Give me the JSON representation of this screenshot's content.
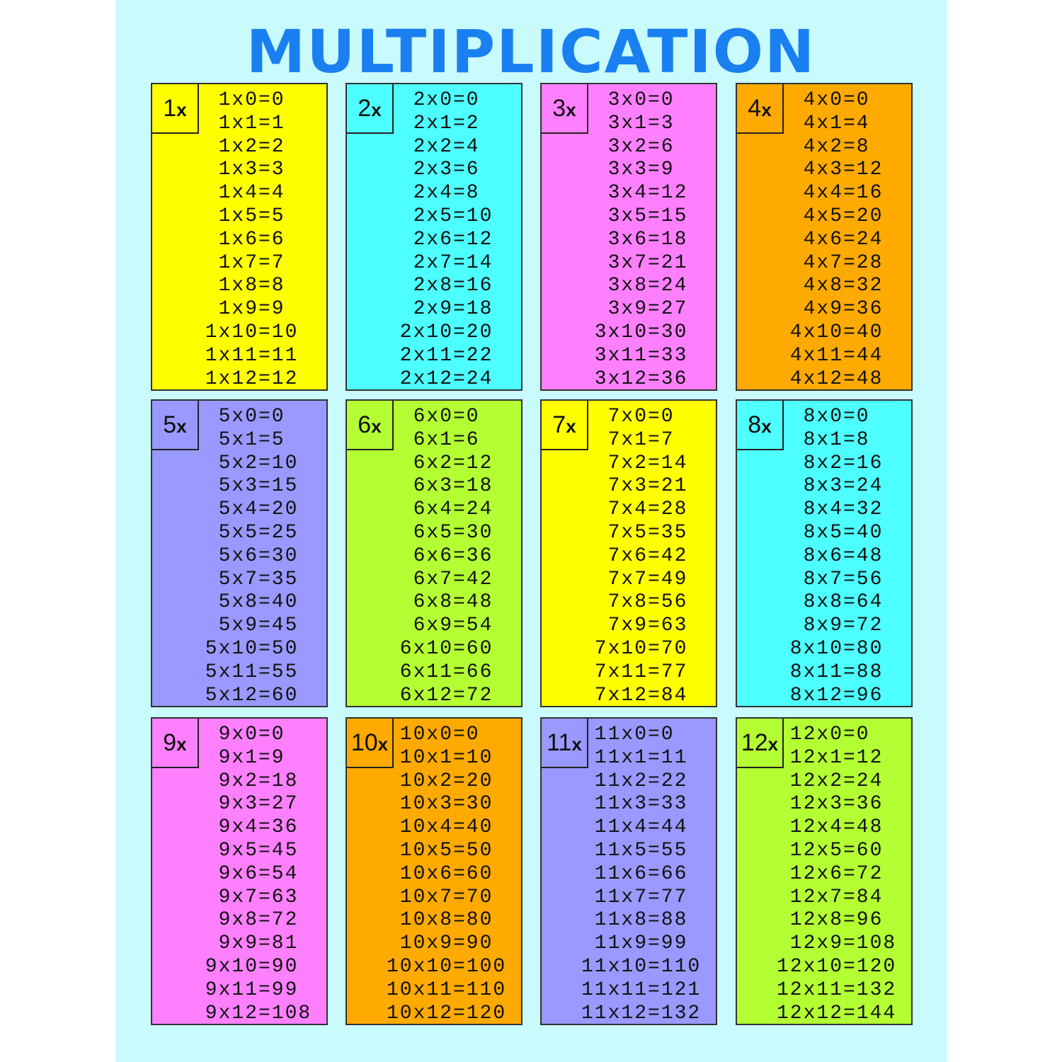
{
  "title": "MULTIPLICATION",
  "cards": [
    {
      "label": "1",
      "suffix": "x",
      "color": "#ffff00"
    },
    {
      "label": "2",
      "suffix": "x",
      "color": "#4dffff"
    },
    {
      "label": "3",
      "suffix": "x",
      "color": "#ff80ff"
    },
    {
      "label": "4",
      "suffix": "x",
      "color": "#ffaa00"
    },
    {
      "label": "5",
      "suffix": "x",
      "color": "#9999ff"
    },
    {
      "label": "6",
      "suffix": "x",
      "color": "#b3ff33"
    },
    {
      "label": "7",
      "suffix": "x",
      "color": "#ffff00"
    },
    {
      "label": "8",
      "suffix": "x",
      "color": "#4dffff"
    },
    {
      "label": "9",
      "suffix": "x",
      "color": "#ff80ff"
    },
    {
      "label": "10",
      "suffix": "x",
      "color": "#ffaa00"
    },
    {
      "label": "11",
      "suffix": "x",
      "color": "#9999ff"
    },
    {
      "label": "12",
      "suffix": "x",
      "color": "#b3ff33"
    }
  ],
  "equations": {
    "1": [
      "1x0=0",
      "1x1=1",
      "1x2=2",
      "1x3=3",
      "1x4=4",
      "1x5=5",
      "1x6=6",
      "1x7=7",
      "1x8=8",
      "1x9=9",
      "1x10=10",
      "1x11=11",
      "1x12=12"
    ],
    "2": [
      "2x0=0",
      "2x1=2",
      "2x2=4",
      "2x3=6",
      "2x4=8",
      "2x5=10",
      "2x6=12",
      "2x7=14",
      "2x8=16",
      "2x9=18",
      "2x10=20",
      "2x11=22",
      "2x12=24"
    ],
    "3": [
      "3x0=0",
      "3x1=3",
      "3x2=6",
      "3x3=9",
      "3x4=12",
      "3x5=15",
      "3x6=18",
      "3x7=21",
      "3x8=24",
      "3x9=27",
      "3x10=30",
      "3x11=33",
      "3x12=36"
    ],
    "4": [
      "4x0=0",
      "4x1=4",
      "4x2=8",
      "4x3=12",
      "4x4=16",
      "4x5=20",
      "4x6=24",
      "4x7=28",
      "4x8=32",
      "4x9=36",
      "4x10=40",
      "4x11=44",
      "4x12=48"
    ],
    "5": [
      "5x0=0",
      "5x1=5",
      "5x2=10",
      "5x3=15",
      "5x4=20",
      "5x5=25",
      "5x6=30",
      "5x7=35",
      "5x8=40",
      "5x9=45",
      "5x10=50",
      "5x11=55",
      "5x12=60"
    ],
    "6": [
      "6x0=0",
      "6x1=6",
      "6x2=12",
      "6x3=18",
      "6x4=24",
      "6x5=30",
      "6x6=36",
      "6x7=42",
      "6x8=48",
      "6x9=54",
      "6x10=60",
      "6x11=66",
      "6x12=72"
    ],
    "7": [
      "7x0=0",
      "7x1=7",
      "7x2=14",
      "7x3=21",
      "7x4=28",
      "7x5=35",
      "7x6=42",
      "7x7=49",
      "7x8=56",
      "7x9=63",
      "7x10=70",
      "7x11=77",
      "7x12=84"
    ],
    "8": [
      "8x0=0",
      "8x1=8",
      "8x2=16",
      "8x3=24",
      "8x4=32",
      "8x5=40",
      "8x6=48",
      "8x7=56",
      "8x8=64",
      "8x9=72",
      "8x10=80",
      "8x11=88",
      "8x12=96"
    ],
    "9": [
      "9x0=0",
      "9x1=9",
      "9x2=18",
      "9x3=27",
      "9x4=36",
      "9x5=45",
      "9x6=54",
      "9x7=63",
      "9x8=72",
      "9x9=81",
      "9x10=90",
      "9x11=99",
      "9x12=108"
    ],
    "10": [
      "10x0=0",
      "10x1=10",
      "10x2=20",
      "10x3=30",
      "10x4=40",
      "10x5=50",
      "10x6=60",
      "10x7=70",
      "10x8=80",
      "10x9=90",
      "10x10=100",
      "10x11=110",
      "10x12=120"
    ],
    "11": [
      "11x0=0",
      "11x1=11",
      "11x2=22",
      "11x3=33",
      "11x4=44",
      "11x5=55",
      "11x6=66",
      "11x7=77",
      "11x8=88",
      "11x9=99",
      "11x10=110",
      "11x11=121",
      "11x12=132"
    ],
    "12": [
      "12x0=0",
      "12x1=12",
      "12x2=24",
      "12x3=36",
      "12x4=48",
      "12x5=60",
      "12x6=72",
      "12x7=84",
      "12x8=96",
      "12x9=108",
      "12x10=120",
      "12x11=132",
      "12x12=144"
    ]
  }
}
